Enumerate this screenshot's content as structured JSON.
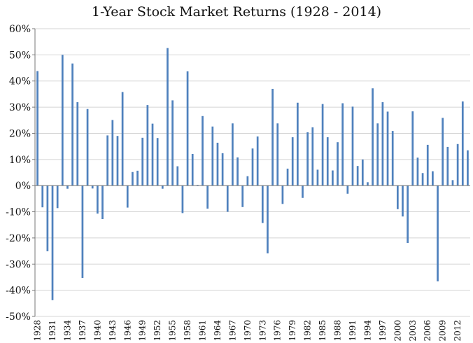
{
  "chart_data": {
    "type": "bar",
    "title": "1-Year Stock Market Returns (1928 - 2014)",
    "xlabel": "",
    "ylabel": "",
    "ylim": [
      -50,
      60
    ],
    "yticks": [
      60,
      50,
      40,
      30,
      20,
      10,
      0,
      -10,
      -20,
      -30,
      -40,
      -50
    ],
    "ytick_labels": [
      "60%",
      "50%",
      "40%",
      "30%",
      "20%",
      "10%",
      "0%",
      "-10%",
      "-20%",
      "-30%",
      "-40%",
      "-50%"
    ],
    "grid": true,
    "color": "#4f81bd",
    "xtick_labels": [
      "1928",
      "1931",
      "1934",
      "1937",
      "1940",
      "1943",
      "1946",
      "1949",
      "1952",
      "1955",
      "1958",
      "1961",
      "1964",
      "1967",
      "1970",
      "1973",
      "1976",
      "1979",
      "1982",
      "1985",
      "1988",
      "1991",
      "1994",
      "1997",
      "2000",
      "2003",
      "2006",
      "2009",
      "2012"
    ],
    "categories": [
      "1928",
      "1929",
      "1930",
      "1931",
      "1932",
      "1933",
      "1934",
      "1935",
      "1936",
      "1937",
      "1938",
      "1939",
      "1940",
      "1941",
      "1942",
      "1943",
      "1944",
      "1945",
      "1946",
      "1947",
      "1948",
      "1949",
      "1950",
      "1951",
      "1952",
      "1953",
      "1954",
      "1955",
      "1956",
      "1957",
      "1958",
      "1959",
      "1960",
      "1961",
      "1962",
      "1963",
      "1964",
      "1965",
      "1966",
      "1967",
      "1968",
      "1969",
      "1970",
      "1971",
      "1972",
      "1973",
      "1974",
      "1975",
      "1976",
      "1977",
      "1978",
      "1979",
      "1980",
      "1981",
      "1982",
      "1983",
      "1984",
      "1985",
      "1986",
      "1987",
      "1988",
      "1989",
      "1990",
      "1991",
      "1992",
      "1993",
      "1994",
      "1995",
      "1996",
      "1997",
      "1998",
      "1999",
      "2000",
      "2001",
      "2002",
      "2003",
      "2004",
      "2005",
      "2006",
      "2007",
      "2008",
      "2009",
      "2010",
      "2011",
      "2012",
      "2013",
      "2014"
    ],
    "values": [
      43.8,
      -8.3,
      -25.1,
      -43.8,
      -8.6,
      50.0,
      -1.2,
      46.7,
      31.9,
      -35.3,
      29.3,
      -1.1,
      -10.7,
      -12.8,
      19.2,
      25.1,
      19.0,
      35.8,
      -8.4,
      5.2,
      5.7,
      18.3,
      30.8,
      23.7,
      18.2,
      -1.2,
      52.6,
      32.6,
      7.4,
      -10.5,
      43.7,
      12.1,
      0.3,
      26.6,
      -8.8,
      22.6,
      16.4,
      12.4,
      -10.0,
      23.8,
      10.8,
      -8.2,
      3.6,
      14.2,
      18.8,
      -14.3,
      -25.9,
      37.0,
      23.8,
      -7.0,
      6.5,
      18.5,
      31.7,
      -4.7,
      20.4,
      22.3,
      6.1,
      31.2,
      18.5,
      5.8,
      16.6,
      31.5,
      -3.1,
      30.2,
      7.5,
      10.0,
      1.3,
      37.2,
      23.8,
      31.9,
      28.3,
      20.9,
      -9.0,
      -11.8,
      -21.9,
      28.4,
      10.7,
      4.8,
      15.6,
      5.5,
      -36.6,
      25.9,
      14.8,
      2.1,
      15.9,
      32.2,
      13.5
    ]
  }
}
